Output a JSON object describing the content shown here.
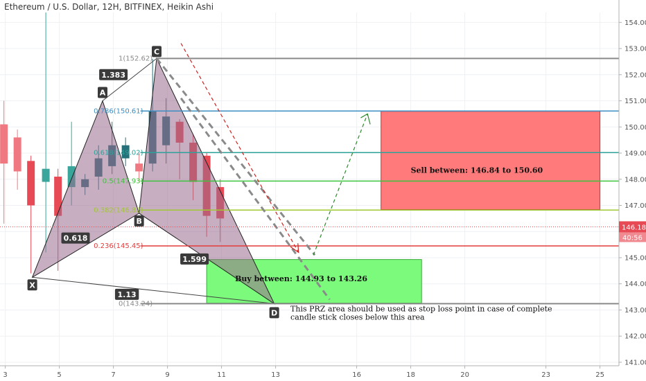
{
  "header": {
    "title": "Ethereum / U.S. Dollar, 12H, BITFINEX, Heikin Ashi"
  },
  "chart_data": {
    "type": "candlestick",
    "title": "Ethereum / U.S. Dollar, 12H, BITFINEX, Heikin Ashi",
    "ylim": [
      141,
      154.6
    ],
    "xlim": [
      2.9,
      26.2
    ],
    "grid": true,
    "y_ticks": [
      "141.00",
      "142.00",
      "143.00",
      "144.00",
      "145.00",
      "146.00",
      "147.00",
      "148.00",
      "149.00",
      "150.00",
      "151.00",
      "152.00",
      "153.00",
      "154.00"
    ],
    "x_ticks": [
      {
        "label": "3",
        "x": 3
      },
      {
        "label": "5",
        "x": 5
      },
      {
        "label": "7",
        "x": 7
      },
      {
        "label": "9",
        "x": 9
      },
      {
        "label": "11",
        "x": 11
      },
      {
        "label": "13",
        "x": 13
      },
      {
        "label": "16",
        "x": 16
      },
      {
        "label": "18",
        "x": 18
      },
      {
        "label": "20",
        "x": 20
      },
      {
        "label": "23",
        "x": 23
      },
      {
        "label": "25",
        "x": 25
      }
    ],
    "colors": {
      "up": "#26707a",
      "down": "#e84a55",
      "down_light": "#f07880",
      "up_light": "#3aa59a",
      "buy_zone": "#7bfa7b",
      "sell_zone": "#ff7b7b",
      "pattern_fill": "#9b6b8e",
      "grey_line": "#8a8a8a",
      "fib_0786": "#3b8fc2",
      "fib_0618": "#2da39a",
      "fib_05": "#3cc43c",
      "fib_0382": "#a0c832",
      "fib_0236": "#e23b3b",
      "price_badge": "#e84a55"
    },
    "candles": [
      {
        "x": 2.95,
        "open": 150.1,
        "close": 148.6,
        "high": 151.0,
        "low": 146.3,
        "color": "down_light"
      },
      {
        "x": 3.45,
        "open": 149.6,
        "close": 148.3,
        "high": 149.9,
        "low": 147.6,
        "color": "down_light"
      },
      {
        "x": 3.95,
        "open": 148.7,
        "close": 147.0,
        "high": 148.9,
        "low": 144.4,
        "color": "down"
      },
      {
        "x": 4.5,
        "open": 147.9,
        "close": 148.4,
        "high": 154.6,
        "low": 145.2,
        "color": "up_light"
      },
      {
        "x": 4.95,
        "open": 148.1,
        "close": 146.6,
        "high": 148.4,
        "low": 144.5,
        "color": "down"
      },
      {
        "x": 5.45,
        "open": 147.7,
        "close": 148.5,
        "high": 150.2,
        "low": 147.0,
        "color": "up_light"
      },
      {
        "x": 5.95,
        "open": 148.0,
        "close": 147.7,
        "high": 148.2,
        "low": 147.4,
        "color": "up"
      },
      {
        "x": 6.45,
        "open": 148.1,
        "close": 148.8,
        "high": 149.3,
        "low": 147.6,
        "color": "up"
      },
      {
        "x": 6.95,
        "open": 148.5,
        "close": 149.3,
        "high": 150.2,
        "low": 148.2,
        "color": "up"
      },
      {
        "x": 7.45,
        "open": 148.8,
        "close": 149.3,
        "high": 149.6,
        "low": 148.5,
        "color": "up"
      },
      {
        "x": 7.95,
        "open": 148.6,
        "close": 148.3,
        "high": 149.0,
        "low": 147.9,
        "color": "down_light"
      },
      {
        "x": 8.45,
        "open": 148.6,
        "close": 150.6,
        "high": 152.6,
        "low": 148.3,
        "color": "up"
      },
      {
        "x": 8.95,
        "open": 149.3,
        "close": 150.4,
        "high": 151.1,
        "low": 148.6,
        "color": "up"
      },
      {
        "x": 9.45,
        "open": 150.2,
        "close": 149.4,
        "high": 150.3,
        "low": 148.0,
        "color": "down"
      },
      {
        "x": 9.95,
        "open": 149.4,
        "close": 147.9,
        "high": 149.7,
        "low": 147.2,
        "color": "down"
      },
      {
        "x": 10.45,
        "open": 148.9,
        "close": 146.6,
        "high": 149.0,
        "low": 145.8,
        "color": "down"
      },
      {
        "x": 10.95,
        "open": 147.7,
        "close": 146.5,
        "high": 148.0,
        "low": 145.6,
        "color": "down"
      }
    ],
    "pattern": {
      "name": "XABCD",
      "points": [
        {
          "label": "X",
          "x": 4.0,
          "y": 144.25
        },
        {
          "label": "A",
          "x": 6.6,
          "y": 151.0
        },
        {
          "label": "B",
          "x": 7.95,
          "y": 146.7
        },
        {
          "label": "C",
          "x": 8.6,
          "y": 152.62
        },
        {
          "label": "D",
          "x": 12.95,
          "y": 143.24
        }
      ],
      "ratios": [
        {
          "label": "1.383",
          "x": 7.0,
          "y": 152.0
        },
        {
          "label": "0.618",
          "x": 5.6,
          "y": 145.75
        },
        {
          "label": "1.599",
          "x": 10.0,
          "y": 144.95
        },
        {
          "label": "1.13",
          "x": 7.5,
          "y": 143.6
        }
      ]
    },
    "levels": [
      {
        "label": "1(152.62)",
        "value": 152.62,
        "color": "grey_line"
      },
      {
        "label": "0.786(150.61)",
        "value": 150.61,
        "color": "fib_0786"
      },
      {
        "label": "0.618(149.02)",
        "value": 149.02,
        "color": "fib_0618"
      },
      {
        "label": "0.5(147.93)",
        "value": 147.93,
        "color": "fib_05"
      },
      {
        "label": "0.382(146.82)",
        "value": 146.82,
        "color": "fib_0382"
      },
      {
        "label": "0.236(145.45)",
        "value": 145.45,
        "color": "fib_0236"
      },
      {
        "label": "0(143.24)",
        "value": 143.24,
        "color": "grey_line"
      }
    ],
    "zones": [
      {
        "label": "Sell between: 146.84 to 150.60",
        "x0": 16.9,
        "x1": 25.0,
        "y0": 146.84,
        "y1": 150.6,
        "color": "sell_zone"
      },
      {
        "label": "Buy between: 144.93 to 143.26",
        "x0": 10.45,
        "x1": 18.4,
        "y0": 143.26,
        "y1": 144.93,
        "color": "buy_zone"
      }
    ],
    "projections": [
      {
        "style": "grey-dashed",
        "points": [
          [
            8.6,
            152.62
          ],
          [
            14.45,
            145.1
          ]
        ]
      },
      {
        "style": "grey-dashed",
        "points": [
          [
            9.5,
            151.1
          ],
          [
            15.0,
            143.4
          ]
        ]
      },
      {
        "style": "red-dashed",
        "points": [
          [
            9.5,
            153.2
          ],
          [
            13.85,
            145.2
          ]
        ]
      },
      {
        "style": "green-dashed",
        "points": [
          [
            14.4,
            145.1
          ],
          [
            16.4,
            150.5
          ]
        ]
      }
    ],
    "annotation": {
      "lines": [
        "This PRZ area should be used as stop loss point in case of complete",
        "candle stick closes below this area"
      ],
      "x": 13.55,
      "y": 142.95
    },
    "price_tag": {
      "price": "146.18",
      "countdown": "40:56",
      "value": 146.18
    }
  }
}
